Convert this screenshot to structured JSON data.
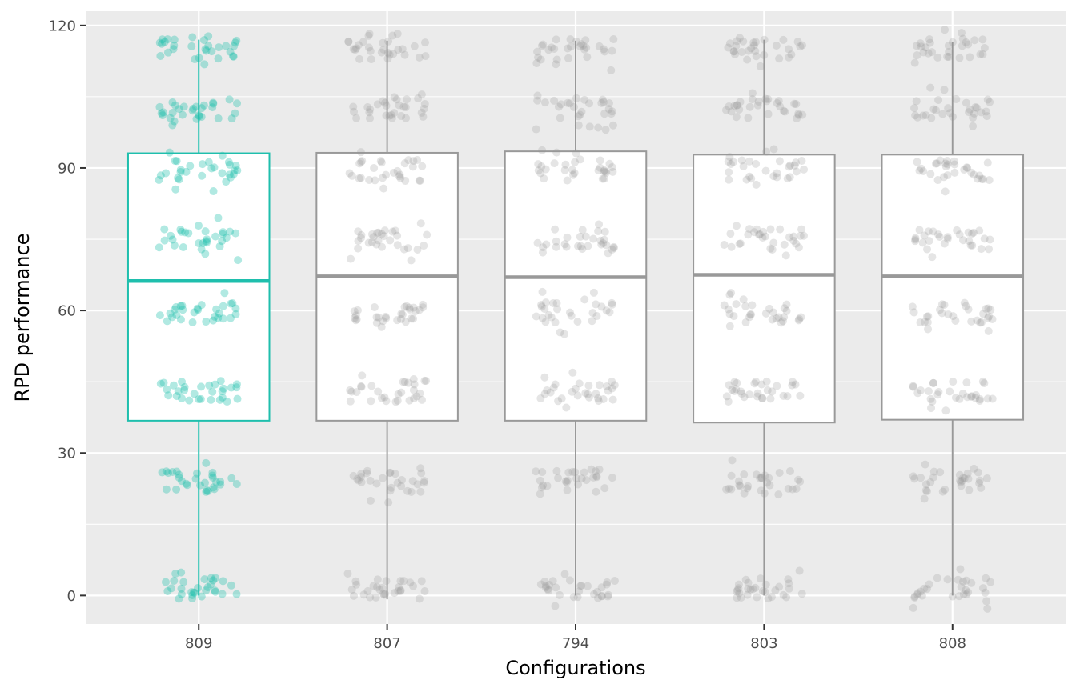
{
  "chart_data": {
    "type": "boxplot",
    "xlabel": "Configurations",
    "ylabel": "RPD performance",
    "categories": [
      "809",
      "807",
      "794",
      "803",
      "808"
    ],
    "ylim": [
      -6,
      123
    ],
    "yticks": [
      0,
      30,
      60,
      90,
      120
    ],
    "grid": true,
    "highlight_category": "809",
    "colors": {
      "highlight": "#1fbfad",
      "default": "#999999",
      "panel": "#ebebeb",
      "gridline": "#ffffff"
    },
    "boxes": [
      {
        "category": "809",
        "min": 0,
        "q1": 36.8,
        "median": 66.2,
        "q3": 93.1,
        "max": 117
      },
      {
        "category": "807",
        "min": -0.8,
        "q1": 36.8,
        "median": 67.2,
        "q3": 93.2,
        "max": 116.8
      },
      {
        "category": "794",
        "min": 0,
        "q1": 36.8,
        "median": 67.0,
        "q3": 93.5,
        "max": 116.8
      },
      {
        "category": "803",
        "min": 0,
        "q1": 36.4,
        "median": 67.5,
        "q3": 92.8,
        "max": 117
      },
      {
        "category": "808",
        "min": 0,
        "q1": 37.0,
        "median": 67.2,
        "q3": 92.8,
        "max": 116.5
      }
    ],
    "point_clusters": [
      1.5,
      24,
      43,
      59.5,
      75,
      89.5,
      102.5,
      115
    ]
  }
}
